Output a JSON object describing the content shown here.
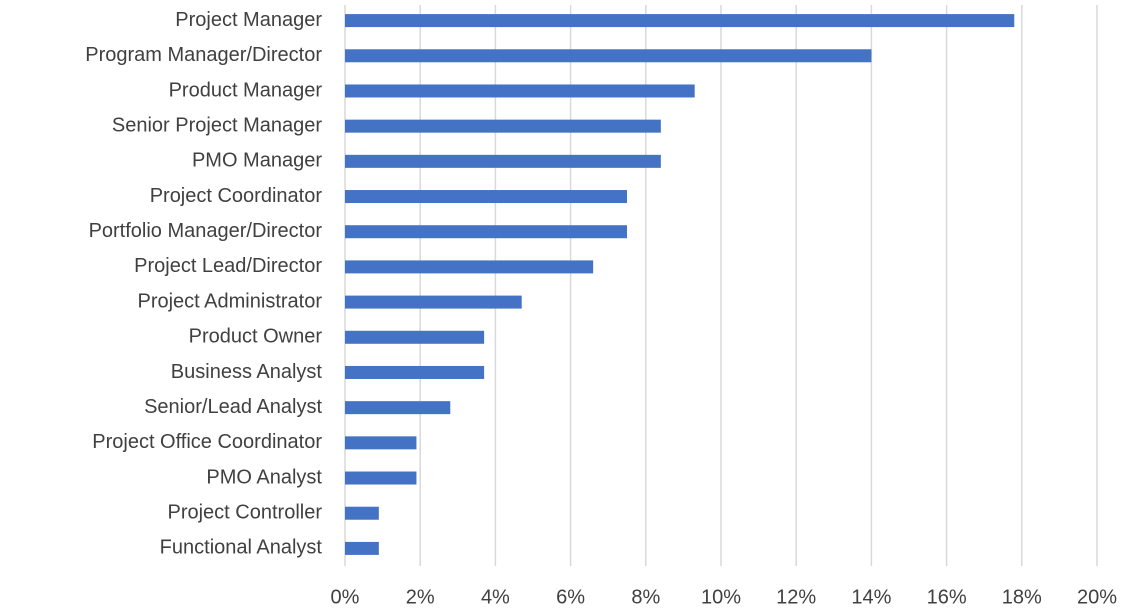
{
  "chart_data": {
    "type": "bar",
    "orientation": "horizontal",
    "categories": [
      "Project Manager",
      "Program Manager/Director",
      "Product Manager",
      "Senior Project Manager",
      "PMO Manager",
      "Project Coordinator",
      "Portfolio Manager/Director",
      "Project Lead/Director",
      "Project Administrator",
      "Product Owner",
      "Business Analyst",
      "Senior/Lead Analyst",
      "Project Office Coordinator",
      "PMO Analyst",
      "Project Controller",
      "Functional Analyst"
    ],
    "values": [
      17.8,
      14.0,
      9.3,
      8.4,
      8.4,
      7.5,
      7.5,
      6.6,
      4.7,
      3.7,
      3.7,
      2.8,
      1.9,
      1.9,
      0.9,
      0.9
    ],
    "color": "#4472c4",
    "xlim": [
      0,
      20
    ],
    "xticks": [
      {
        "value": 0,
        "label": "0%"
      },
      {
        "value": 2,
        "label": "2%"
      },
      {
        "value": 4,
        "label": "4%"
      },
      {
        "value": 6,
        "label": "6%"
      },
      {
        "value": 8,
        "label": "8%"
      },
      {
        "value": 10,
        "label": "10%"
      },
      {
        "value": 12,
        "label": "12%"
      },
      {
        "value": 14,
        "label": "14%"
      },
      {
        "value": 16,
        "label": "16%"
      },
      {
        "value": 18,
        "label": "18%"
      },
      {
        "value": 20,
        "label": "20%"
      }
    ],
    "grid": true
  }
}
